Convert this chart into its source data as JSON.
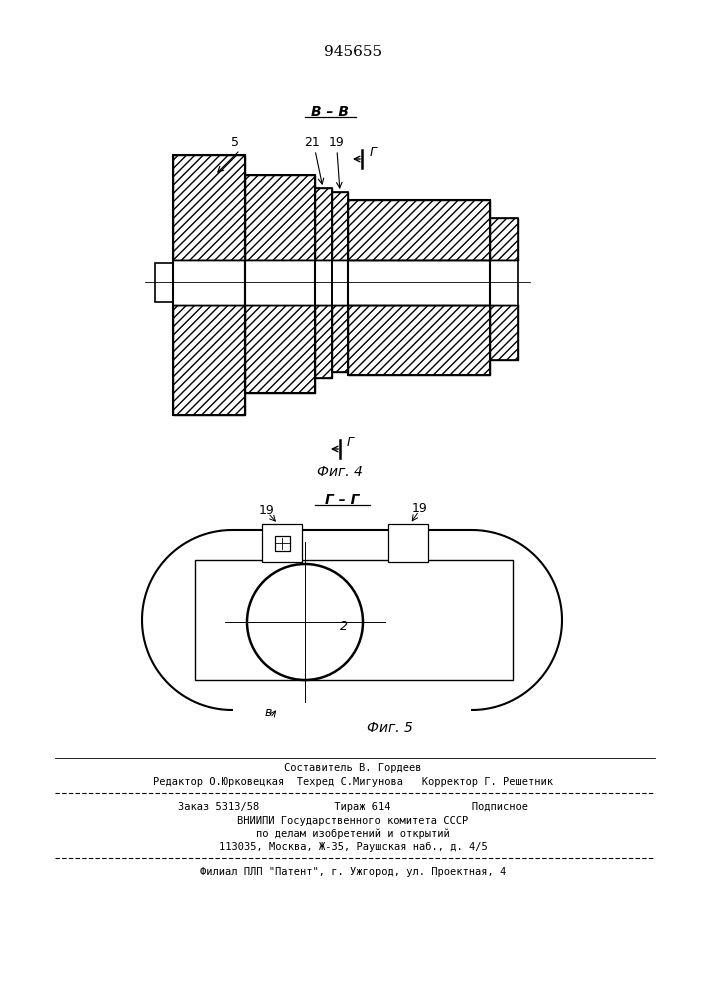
{
  "patent_number": "945655",
  "fig4_section_label": "В – В",
  "fig4_caption": "Фиг. 4",
  "fig5_section_label": "Г – Г",
  "fig5_caption": "Фиг. 5",
  "cut_marker": "Г",
  "label_5": "5",
  "label_21": "21",
  "label_19": "19",
  "label_2": "2",
  "label_8": "в",
  "footer_line1": "Составитель В. Гордеев",
  "footer_line2": "Редактор О.Юрковецкая  Техред С.Мигунова   Корректор Г. Решетник",
  "footer_line3": "Заказ 5313/58            Тираж 614             Подписное",
  "footer_line4": "ВНИИПИ Государственного комитета СССР",
  "footer_line5": "по делам изобретений и открытий",
  "footer_line6": "113035, Москва, Ж-35, Раушская наб., д. 4/5",
  "footer_line7": "Филиал ПЛП \"Патент\", г. Ужгород, ул. Проектная, 4"
}
